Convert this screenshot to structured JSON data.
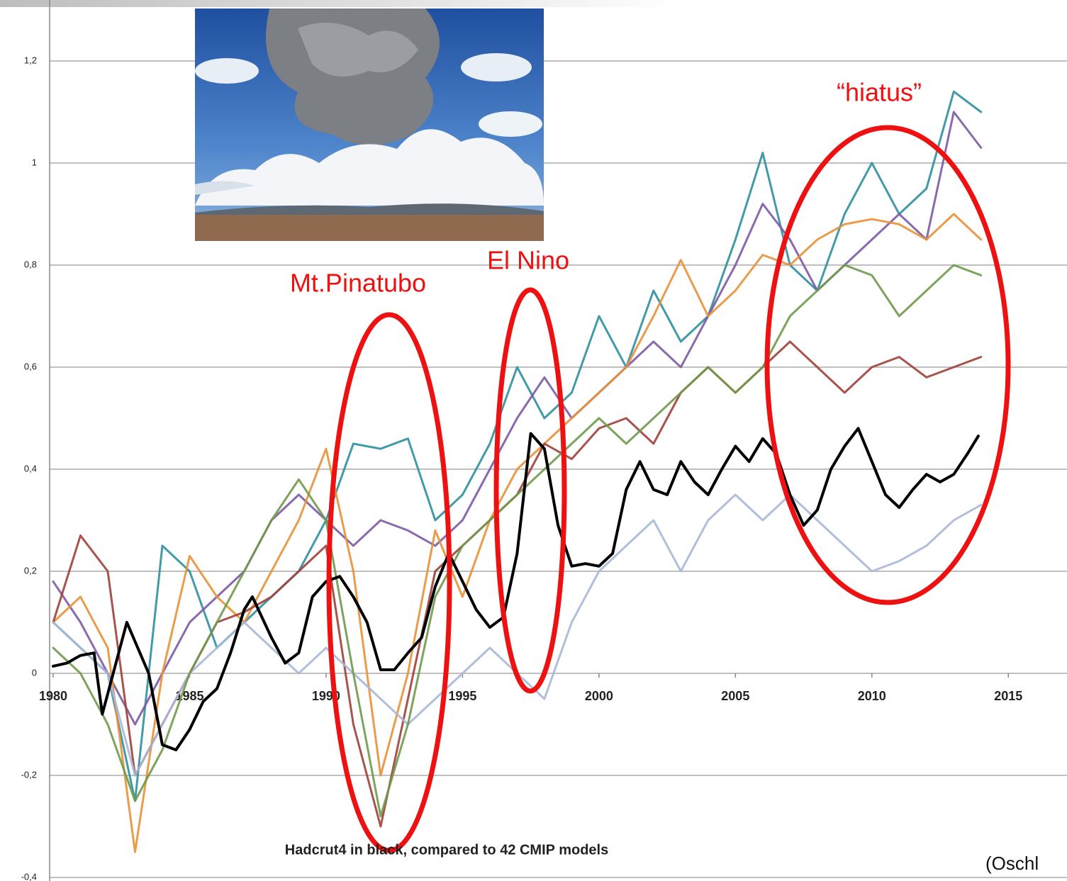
{
  "chart_data": {
    "type": "line",
    "annotations": [
      "Mt.Pinatubo",
      "El Nino",
      "“hiatus”",
      "Hadcrut4 in black, compared to 42 CMIP models",
      "(Oschl"
    ],
    "xlim": [
      1979.87,
      2017.15
    ],
    "ylim": [
      -0.4,
      1.3
    ],
    "xticks": [
      1980,
      1985,
      1990,
      1995,
      2000,
      2005,
      2010,
      2015
    ],
    "yticks": [
      {
        "value": -0.4,
        "label": "-0,4"
      },
      {
        "value": -0.2,
        "label": "-0,2"
      },
      0,
      {
        "value": 0.2,
        "label": "0,2"
      },
      {
        "value": 0.4,
        "label": "0,4"
      },
      {
        "value": 0.6,
        "label": "0,6"
      },
      {
        "value": 0.8,
        "label": "0,8"
      },
      1,
      {
        "value": 1.2,
        "label": "1,2"
      }
    ],
    "grid": true,
    "series": [
      {
        "color": "#2f8fa0",
        "x": [
          1980,
          1981,
          1982,
          1983,
          1984,
          1985,
          1986,
          1987,
          1988,
          1989,
          1990,
          1991,
          1992,
          1993,
          1994,
          1995,
          1996,
          1997,
          1998,
          1999,
          2000,
          2001,
          2002,
          2003,
          2004,
          2005,
          2006,
          2007,
          2008,
          2009,
          2010,
          2011,
          2012,
          2013,
          2014
        ],
        "values": [
          0.1,
          0.05,
          0.0,
          -0.25,
          0.25,
          0.2,
          0.05,
          0.1,
          0.15,
          0.2,
          0.3,
          0.45,
          0.44,
          0.46,
          0.3,
          0.35,
          0.45,
          0.6,
          0.5,
          0.55,
          0.7,
          0.6,
          0.75,
          0.65,
          0.7,
          0.85,
          1.02,
          0.8,
          0.75,
          0.9,
          1.0,
          0.9,
          0.95,
          1.14,
          1.1
        ]
      },
      {
        "color": "#7d5aa6",
        "x": [
          1980,
          1981,
          1982,
          1983,
          1984,
          1985,
          1986,
          1987,
          1988,
          1989,
          1990,
          1991,
          1992,
          1993,
          1994,
          1995,
          1996,
          1997,
          1998,
          1999,
          2000,
          2001,
          2002,
          2003,
          2004,
          2005,
          2006,
          2007,
          2008,
          2009,
          2010,
          2011,
          2012,
          2013,
          2014
        ],
        "values": [
          0.18,
          0.1,
          0.0,
          -0.1,
          0.0,
          0.1,
          0.15,
          0.2,
          0.3,
          0.35,
          0.3,
          0.25,
          0.3,
          0.28,
          0.25,
          0.3,
          0.4,
          0.5,
          0.58,
          0.5,
          0.55,
          0.6,
          0.65,
          0.6,
          0.7,
          0.8,
          0.92,
          0.85,
          0.75,
          0.8,
          0.85,
          0.9,
          0.85,
          1.1,
          1.03
        ]
      },
      {
        "color": "#e8913a",
        "x": [
          1980,
          1981,
          1982,
          1983,
          1984,
          1985,
          1986,
          1987,
          1988,
          1989,
          1990,
          1991,
          1992,
          1993,
          1994,
          1995,
          1996,
          1997,
          1998,
          1999,
          2000,
          2001,
          2002,
          2003,
          2004,
          2005,
          2006,
          2007,
          2008,
          2009,
          2010,
          2011,
          2012,
          2013,
          2014
        ],
        "values": [
          0.1,
          0.15,
          0.05,
          -0.35,
          0.0,
          0.23,
          0.15,
          0.1,
          0.2,
          0.3,
          0.44,
          0.2,
          -0.2,
          0.0,
          0.28,
          0.15,
          0.3,
          0.4,
          0.45,
          0.5,
          0.55,
          0.6,
          0.7,
          0.81,
          0.7,
          0.75,
          0.82,
          0.8,
          0.85,
          0.88,
          0.89,
          0.88,
          0.85,
          0.9,
          0.85
        ]
      },
      {
        "color": "#a0403a",
        "x": [
          1980,
          1981,
          1982,
          1983,
          1984,
          1985,
          1986,
          1987,
          1988,
          1989,
          1990,
          1991,
          1992,
          1993,
          1994,
          1995,
          1996,
          1997,
          1998,
          1999,
          2000,
          2001,
          2002,
          2003,
          2004,
          2005,
          2006,
          2007,
          2008,
          2009,
          2010,
          2011,
          2012,
          2013,
          2014
        ],
        "values": [
          0.1,
          0.27,
          0.2,
          -0.2,
          -0.1,
          0.0,
          0.1,
          0.12,
          0.15,
          0.2,
          0.25,
          -0.1,
          -0.3,
          -0.05,
          0.2,
          0.25,
          0.3,
          0.35,
          0.45,
          0.42,
          0.48,
          0.5,
          0.45,
          0.55,
          0.6,
          0.55,
          0.6,
          0.65,
          0.6,
          0.55,
          0.6,
          0.62,
          0.58,
          0.6,
          0.62
        ]
      },
      {
        "color": "#a9b8d8",
        "x": [
          1980,
          1981,
          1982,
          1983,
          1984,
          1985,
          1986,
          1987,
          1988,
          1989,
          1990,
          1991,
          1992,
          1993,
          1994,
          1995,
          1996,
          1997,
          1998,
          1999,
          2000,
          2001,
          2002,
          2003,
          2004,
          2005,
          2006,
          2007,
          2008,
          2009,
          2010,
          2011,
          2012,
          2013,
          2014
        ],
        "values": [
          0.1,
          0.05,
          0.0,
          -0.2,
          -0.1,
          0.0,
          0.05,
          0.1,
          0.05,
          0.0,
          0.05,
          0.0,
          -0.05,
          -0.1,
          -0.05,
          0.0,
          0.05,
          0.0,
          -0.05,
          0.1,
          0.2,
          0.25,
          0.3,
          0.2,
          0.3,
          0.35,
          0.3,
          0.35,
          0.3,
          0.25,
          0.2,
          0.22,
          0.25,
          0.3,
          0.33
        ]
      },
      {
        "color": "#6f9a4a",
        "x": [
          1980,
          1981,
          1982,
          1983,
          1984,
          1985,
          1986,
          1987,
          1988,
          1989,
          1990,
          1991,
          1992,
          1993,
          1994,
          1995,
          1996,
          1997,
          1998,
          1999,
          2000,
          2001,
          2002,
          2003,
          2004,
          2005,
          2006,
          2007,
          2008,
          2009,
          2010,
          2011,
          2012,
          2013,
          2014
        ],
        "values": [
          0.05,
          0.0,
          -0.1,
          -0.25,
          -0.15,
          0.0,
          0.1,
          0.2,
          0.3,
          0.38,
          0.3,
          0.0,
          -0.28,
          -0.1,
          0.15,
          0.25,
          0.3,
          0.35,
          0.4,
          0.45,
          0.5,
          0.45,
          0.5,
          0.55,
          0.6,
          0.55,
          0.6,
          0.7,
          0.75,
          0.8,
          0.78,
          0.7,
          0.75,
          0.8,
          0.78
        ]
      },
      {
        "color": "#000000",
        "x": [
          1980,
          1980.5,
          1981,
          1981.5,
          1981.8,
          1982.7,
          1983.5,
          1984,
          1984.5,
          1985,
          1985.5,
          1986,
          1986.5,
          1987,
          1987.3,
          1988,
          1988.5,
          1989,
          1989.5,
          1990,
          1990.5,
          1991,
          1991.5,
          1992,
          1992.5,
          1993,
          1993.5,
          1994,
          1994.5,
          1995,
          1995.5,
          1996,
          1996.5,
          1997,
          1997.5,
          1998,
          1998.5,
          1999,
          1999.5,
          2000,
          2000.5,
          2001,
          2001.5,
          2002,
          2002.5,
          2003,
          2003.5,
          2004,
          2004.5,
          2005,
          2005.5,
          2006,
          2006.5,
          2007,
          2007.5,
          2008,
          2008.5,
          2009,
          2009.5,
          2010,
          2010.5,
          2011,
          2011.5,
          2012,
          2012.5,
          2013,
          2013.5,
          2013.9
        ],
        "values": [
          0.014,
          0.02,
          0.035,
          0.04,
          -0.08,
          0.1,
          0.0,
          -0.14,
          -0.15,
          -0.11,
          -0.055,
          -0.03,
          0.04,
          0.125,
          0.15,
          0.07,
          0.02,
          0.04,
          0.15,
          0.18,
          0.19,
          0.15,
          0.1,
          0.007,
          0.007,
          0.04,
          0.07,
          0.17,
          0.235,
          0.18,
          0.125,
          0.09,
          0.11,
          0.235,
          0.47,
          0.44,
          0.29,
          0.21,
          0.215,
          0.21,
          0.235,
          0.36,
          0.415,
          0.36,
          0.35,
          0.415,
          0.375,
          0.35,
          0.4,
          0.445,
          0.415,
          0.46,
          0.43,
          0.35,
          0.29,
          0.32,
          0.4,
          0.445,
          0.48,
          0.415,
          0.35,
          0.325,
          0.36,
          0.39,
          0.375,
          0.39,
          0.43,
          0.465
        ]
      }
    ]
  }
}
